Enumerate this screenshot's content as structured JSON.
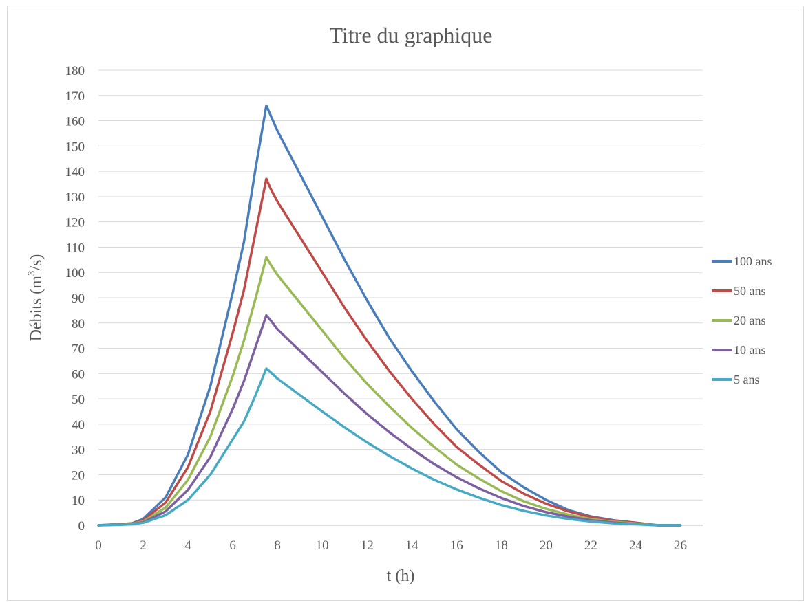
{
  "chart_data": {
    "type": "line",
    "title": "Titre du graphique",
    "xlabel": "t (h)",
    "ylabel": "Débits (m³/s)",
    "ylabel_parts": {
      "before": "Débits (m",
      "sup": "3",
      "after": "/s)"
    },
    "xlim": [
      0,
      27
    ],
    "ylim": [
      0,
      180
    ],
    "x_ticks": [
      0,
      2,
      4,
      6,
      8,
      10,
      12,
      14,
      16,
      18,
      20,
      22,
      24,
      26
    ],
    "y_ticks": [
      0,
      10,
      20,
      30,
      40,
      50,
      60,
      70,
      80,
      90,
      100,
      110,
      120,
      130,
      140,
      150,
      160,
      170,
      180
    ],
    "grid": "horizontal",
    "legend_position": "right",
    "series": [
      {
        "name": "100 ans",
        "color": "#4a7ebb",
        "points": [
          [
            0,
            0
          ],
          [
            1,
            0.5
          ],
          [
            1.5,
            0.8
          ],
          [
            2,
            2.5
          ],
          [
            3,
            11
          ],
          [
            4,
            28
          ],
          [
            5,
            55
          ],
          [
            6,
            92
          ],
          [
            6.5,
            112
          ],
          [
            7,
            140
          ],
          [
            7.5,
            166
          ],
          [
            7.7,
            162
          ],
          [
            8,
            156
          ],
          [
            9,
            139
          ],
          [
            10,
            122
          ],
          [
            11,
            105
          ],
          [
            12,
            89
          ],
          [
            13,
            74
          ],
          [
            14,
            61
          ],
          [
            15,
            49
          ],
          [
            16,
            38
          ],
          [
            17,
            29
          ],
          [
            18,
            21
          ],
          [
            19,
            15
          ],
          [
            20,
            10
          ],
          [
            21,
            6
          ],
          [
            22,
            3.5
          ],
          [
            23,
            2
          ],
          [
            24,
            1
          ],
          [
            25,
            0
          ],
          [
            26,
            0
          ]
        ]
      },
      {
        "name": "50 ans",
        "color": "#be4b48",
        "points": [
          [
            0,
            0
          ],
          [
            1,
            0.5
          ],
          [
            1.5,
            0.7
          ],
          [
            2,
            2
          ],
          [
            3,
            9
          ],
          [
            4,
            23
          ],
          [
            5,
            45
          ],
          [
            6,
            76
          ],
          [
            6.5,
            93
          ],
          [
            7,
            115
          ],
          [
            7.5,
            137
          ],
          [
            7.7,
            133
          ],
          [
            8,
            128
          ],
          [
            9,
            114
          ],
          [
            10,
            100
          ],
          [
            11,
            86
          ],
          [
            12,
            73
          ],
          [
            13,
            61
          ],
          [
            14,
            50
          ],
          [
            15,
            40
          ],
          [
            16,
            31
          ],
          [
            17,
            24
          ],
          [
            18,
            17.5
          ],
          [
            19,
            12.5
          ],
          [
            20,
            8.5
          ],
          [
            21,
            5.5
          ],
          [
            22,
            3.3
          ],
          [
            23,
            1.8
          ],
          [
            24,
            1
          ],
          [
            25,
            0
          ],
          [
            26,
            0
          ]
        ]
      },
      {
        "name": "20 ans",
        "color": "#98b954",
        "points": [
          [
            0,
            0
          ],
          [
            1,
            0.4
          ],
          [
            1.5,
            0.6
          ],
          [
            2,
            1.5
          ],
          [
            3,
            7
          ],
          [
            4,
            18
          ],
          [
            5,
            35
          ],
          [
            6,
            59
          ],
          [
            6.5,
            73
          ],
          [
            7,
            89
          ],
          [
            7.5,
            106
          ],
          [
            7.7,
            103
          ],
          [
            8,
            99
          ],
          [
            9,
            88
          ],
          [
            10,
            77
          ],
          [
            11,
            66
          ],
          [
            12,
            56
          ],
          [
            13,
            47
          ],
          [
            14,
            38.5
          ],
          [
            15,
            31
          ],
          [
            16,
            24
          ],
          [
            17,
            18.5
          ],
          [
            18,
            13.5
          ],
          [
            19,
            9.5
          ],
          [
            20,
            6.5
          ],
          [
            21,
            4.2
          ],
          [
            22,
            2.5
          ],
          [
            23,
            1.4
          ],
          [
            24,
            0.7
          ],
          [
            25,
            0
          ],
          [
            26,
            0
          ]
        ]
      },
      {
        "name": "10 ans",
        "color": "#7d60a0",
        "points": [
          [
            0,
            0
          ],
          [
            1,
            0.3
          ],
          [
            1.5,
            0.5
          ],
          [
            2,
            1.2
          ],
          [
            3,
            5.5
          ],
          [
            4,
            14
          ],
          [
            5,
            27
          ],
          [
            6,
            46
          ],
          [
            6.5,
            57
          ],
          [
            7,
            70
          ],
          [
            7.5,
            83
          ],
          [
            7.7,
            81
          ],
          [
            8,
            77.5
          ],
          [
            9,
            69
          ],
          [
            10,
            60.5
          ],
          [
            11,
            52
          ],
          [
            12,
            44
          ],
          [
            13,
            36.8
          ],
          [
            14,
            30.2
          ],
          [
            15,
            24.2
          ],
          [
            16,
            19
          ],
          [
            17,
            14.6
          ],
          [
            18,
            10.8
          ],
          [
            19,
            7.6
          ],
          [
            20,
            5.2
          ],
          [
            21,
            3.4
          ],
          [
            22,
            2
          ],
          [
            23,
            1.1
          ],
          [
            24,
            0.5
          ],
          [
            25,
            0
          ],
          [
            26,
            0
          ]
        ]
      },
      {
        "name": "5 ans",
        "color": "#46aac5",
        "points": [
          [
            0,
            0
          ],
          [
            1,
            0.2
          ],
          [
            1.5,
            0.4
          ],
          [
            2,
            1
          ],
          [
            3,
            4
          ],
          [
            4,
            10
          ],
          [
            5,
            20
          ],
          [
            6,
            34
          ],
          [
            6.5,
            41
          ],
          [
            7,
            51
          ],
          [
            7.5,
            62
          ],
          [
            7.7,
            60.5
          ],
          [
            8,
            58
          ],
          [
            9,
            51.5
          ],
          [
            10,
            45
          ],
          [
            11,
            38.7
          ],
          [
            12,
            32.8
          ],
          [
            13,
            27.4
          ],
          [
            14,
            22.5
          ],
          [
            15,
            18
          ],
          [
            16,
            14.2
          ],
          [
            17,
            10.9
          ],
          [
            18,
            8
          ],
          [
            19,
            5.7
          ],
          [
            20,
            3.9
          ],
          [
            21,
            2.5
          ],
          [
            22,
            1.5
          ],
          [
            23,
            0.8
          ],
          [
            24,
            0.4
          ],
          [
            25,
            0
          ],
          [
            26,
            0
          ]
        ]
      }
    ]
  }
}
